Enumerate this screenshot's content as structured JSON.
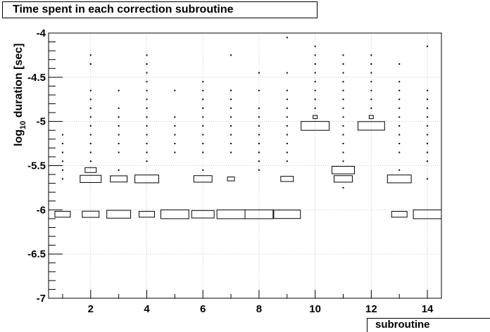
{
  "title": "Time spent in each correction subroutine",
  "chart_data": {
    "type": "box-histogram-2d",
    "title": "Time spent in each correction subroutine",
    "xlabel": "subroutine",
    "ylabel_main": "log",
    "ylabel_sub": "10",
    "ylabel_rest": " duration [sec]",
    "xlim": [
      0.5,
      14.5
    ],
    "ylim": [
      -7,
      -4
    ],
    "x_ticks": [
      2,
      4,
      6,
      8,
      10,
      12,
      14
    ],
    "x_tick_labels": [
      "2",
      "4",
      "6",
      "8",
      "10",
      "12",
      "14"
    ],
    "y_ticks": [
      -7,
      -6.5,
      -6,
      -5.5,
      -5,
      -4.5,
      -4
    ],
    "y_tick_labels": [
      "-7",
      "-6.5",
      "-6",
      "-5.5",
      "-5",
      "-4.5",
      "-4"
    ],
    "grid": true,
    "bin_width_y": 0.1,
    "boxes": [
      {
        "x": 1,
        "y": -6.05,
        "w": 0.55
      },
      {
        "x": 2,
        "y": -5.65,
        "w": 0.75
      },
      {
        "x": 2,
        "y": -5.55,
        "w": 0.4
      },
      {
        "x": 2,
        "y": -6.05,
        "w": 0.6
      },
      {
        "x": 3,
        "y": -5.65,
        "w": 0.6
      },
      {
        "x": 3,
        "y": -6.05,
        "w": 0.85
      },
      {
        "x": 4,
        "y": -5.65,
        "w": 0.85
      },
      {
        "x": 4,
        "y": -6.05,
        "w": 0.55
      },
      {
        "x": 5,
        "y": -6.05,
        "w": 1.0
      },
      {
        "x": 6,
        "y": -5.65,
        "w": 0.65
      },
      {
        "x": 6,
        "y": -6.05,
        "w": 0.8
      },
      {
        "x": 7,
        "y": -5.65,
        "w": 0.25
      },
      {
        "x": 7,
        "y": -6.05,
        "w": 1.0
      },
      {
        "x": 8,
        "y": -6.05,
        "w": 1.0
      },
      {
        "x": 9,
        "y": -5.65,
        "w": 0.45
      },
      {
        "x": 9,
        "y": -6.05,
        "w": 0.95
      },
      {
        "x": 10,
        "y": -5.05,
        "w": 1.0
      },
      {
        "x": 10,
        "y": -4.95,
        "w": 0.15
      },
      {
        "x": 11,
        "y": -5.55,
        "w": 0.8
      },
      {
        "x": 11,
        "y": -5.65,
        "w": 0.65
      },
      {
        "x": 12,
        "y": -5.05,
        "w": 0.95
      },
      {
        "x": 12,
        "y": -4.95,
        "w": 0.15
      },
      {
        "x": 13,
        "y": -5.65,
        "w": 0.85
      },
      {
        "x": 13,
        "y": -6.05,
        "w": 0.55
      },
      {
        "x": 14,
        "y": -6.05,
        "w": 1.0
      }
    ],
    "dots": [
      {
        "x": 1,
        "ys": [
          -5.15,
          -5.25,
          -5.35,
          -5.45,
          -5.55,
          -5.65
        ]
      },
      {
        "x": 2,
        "ys": [
          -4.25,
          -4.35,
          -4.65,
          -4.75,
          -4.85,
          -4.95,
          -5.05,
          -5.15,
          -5.25,
          -5.35,
          -5.45
        ]
      },
      {
        "x": 3,
        "ys": [
          -4.65,
          -4.85,
          -4.95,
          -5.05,
          -5.15,
          -5.25,
          -5.35,
          -5.55
        ]
      },
      {
        "x": 4,
        "ys": [
          -4.25,
          -4.35,
          -4.45,
          -4.55,
          -4.65,
          -4.75,
          -4.85,
          -4.95,
          -5.05,
          -5.15,
          -5.25,
          -5.35,
          -5.45
        ]
      },
      {
        "x": 5,
        "ys": [
          -4.65,
          -4.95,
          -5.05,
          -5.15,
          -5.25,
          -5.35
        ]
      },
      {
        "x": 6,
        "ys": [
          -4.55,
          -4.65,
          -4.75,
          -4.85,
          -4.95,
          -5.05,
          -5.15,
          -5.25,
          -5.35,
          -5.55
        ]
      },
      {
        "x": 7,
        "ys": [
          -4.25,
          -4.65,
          -4.75,
          -4.85,
          -4.95,
          -5.05,
          -5.15,
          -5.25,
          -5.35
        ]
      },
      {
        "x": 8,
        "ys": [
          -4.45,
          -4.65,
          -4.85,
          -4.95,
          -5.05,
          -5.15,
          -5.25,
          -5.35,
          -5.45,
          -5.55
        ]
      },
      {
        "x": 9,
        "ys": [
          -4.05,
          -4.45,
          -4.65,
          -4.75,
          -4.85,
          -4.95,
          -5.05,
          -5.15,
          -5.25,
          -5.35,
          -5.45
        ]
      },
      {
        "x": 10,
        "ys": [
          -4.15,
          -4.25,
          -4.35,
          -4.45,
          -4.55,
          -4.65,
          -4.75,
          -4.85
        ]
      },
      {
        "x": 11,
        "ys": [
          -4.25,
          -4.35,
          -4.45,
          -4.55,
          -4.65,
          -4.75,
          -4.85,
          -4.95,
          -5.05,
          -5.15,
          -5.25,
          -5.35,
          -5.45,
          -5.75
        ]
      },
      {
        "x": 12,
        "ys": [
          -4.25,
          -4.35,
          -4.45,
          -4.55,
          -4.65,
          -4.75,
          -4.85
        ]
      },
      {
        "x": 13,
        "ys": [
          -4.35,
          -4.55,
          -4.65,
          -4.75,
          -4.85,
          -4.95,
          -5.05,
          -5.15,
          -5.25,
          -5.35,
          -5.55
        ]
      },
      {
        "x": 14,
        "ys": [
          -4.15,
          -4.65,
          -4.75,
          -4.85,
          -4.95,
          -5.05,
          -5.15,
          -5.25,
          -5.35,
          -5.45,
          -5.65
        ]
      }
    ]
  }
}
